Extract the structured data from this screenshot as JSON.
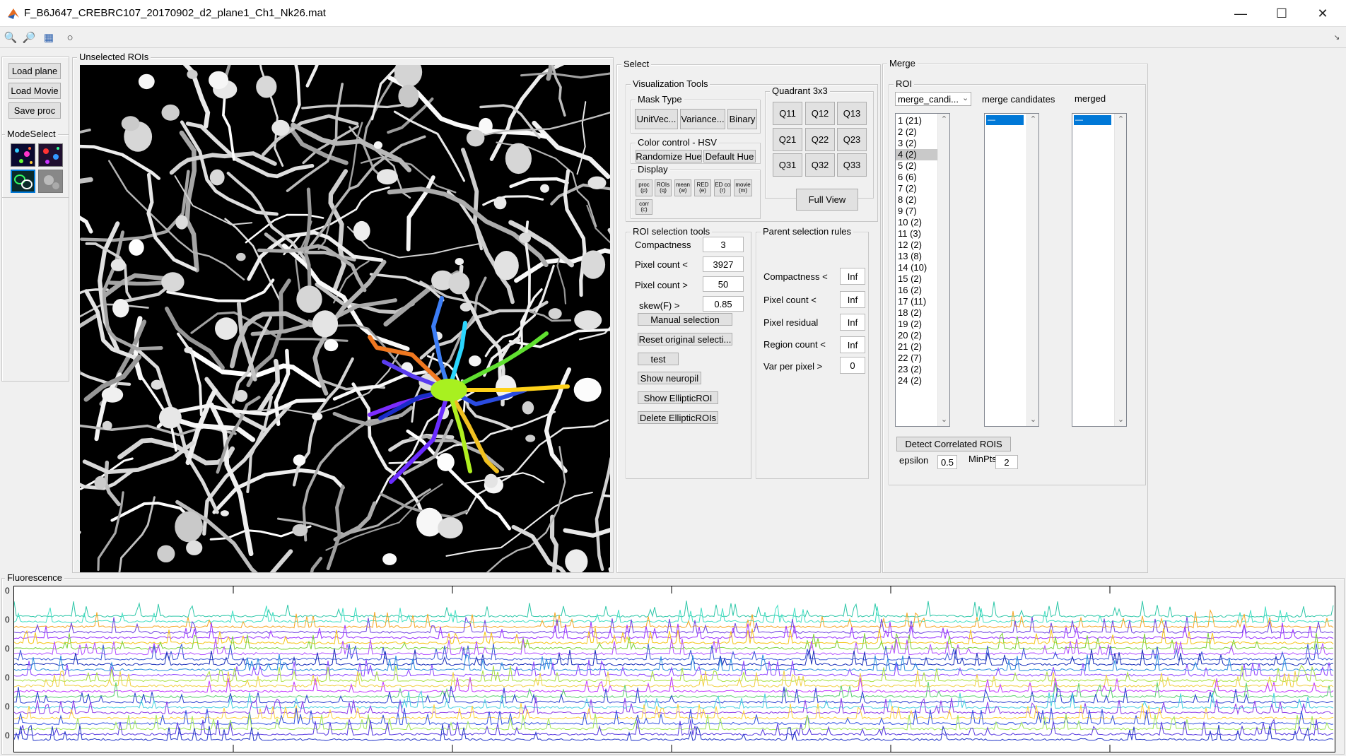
{
  "window": {
    "title": "F_B6J647_CREBRC107_20170902_d2_plane1_Ch1_Nk26.mat"
  },
  "toolbar": {
    "icons": [
      "zoom-in-icon",
      "zoom-out-icon",
      "pan-icon",
      "circle-icon"
    ]
  },
  "left": {
    "load_plane": "Load plane",
    "load_movie": "Load Movie",
    "save_proc": "Save proc",
    "modeselect_title": "ModeSelect"
  },
  "image_panel": {
    "title": "Unselected ROIs"
  },
  "select": {
    "title": "Select",
    "vis_tools": "Visualization Tools",
    "mask_type": "Mask Type",
    "mask_buttons": [
      "UnitVec...",
      "Variance...",
      "Binary"
    ],
    "color_control": "Color control - HSV",
    "randomize_hue": "Randomize Hue",
    "default_hue": "Default Hue",
    "display": "Display",
    "display_buttons": [
      {
        "l1": "proc",
        "l2": "(p)"
      },
      {
        "l1": "ROIs",
        "l2": "(q)"
      },
      {
        "l1": "mean",
        "l2": "(w)"
      },
      {
        "l1": "RED",
        "l2": "(e)"
      },
      {
        "l1": "RED corr",
        "l2": "(r)"
      },
      {
        "l1": "movie",
        "l2": "(m)"
      }
    ],
    "corr_button": {
      "l1": "corr",
      "l2": "(c)"
    },
    "quadrant_title": "Quadrant 3x3",
    "quadrants": [
      "Q11",
      "Q12",
      "Q13",
      "Q21",
      "Q22",
      "Q23",
      "Q31",
      "Q32",
      "Q33"
    ],
    "full_view": "Full View",
    "roi_tools_title": "ROI selection tools",
    "roi_rows": [
      {
        "label": "Compactness",
        "value": "3"
      },
      {
        "label": "Pixel count <",
        "value": "3927"
      },
      {
        "label": "Pixel count >",
        "value": "50"
      },
      {
        "label": "skew(F) >",
        "value": "0.85"
      }
    ],
    "manual_selection": "Manual selection",
    "reset_original": "Reset original selecti...",
    "test": "test",
    "show_neuropil": "Show neuropil",
    "show_elliptic": "Show EllipticROI",
    "delete_elliptic": "Delete EllipticROIs",
    "parent_title": "Parent selection rules",
    "parent_rows": [
      {
        "label": "Compactness <",
        "value": "Inf"
      },
      {
        "label": "Pixel count <",
        "value": "Inf"
      },
      {
        "label": "Pixel residual",
        "value": "Inf"
      },
      {
        "label": "Region count <",
        "value": "Inf"
      },
      {
        "label": "Var per pixel >",
        "value": "0"
      }
    ]
  },
  "merge": {
    "title": "Merge",
    "roi_title": "ROI",
    "dropdown_value": "merge_candi...",
    "merge_candidates_label": "merge candidates",
    "merged_label": "merged",
    "roi_list": [
      "1 (21)",
      "2 (2)",
      "3 (2)",
      "4 (2)",
      "5 (2)",
      "6 (6)",
      "7 (2)",
      "8 (2)",
      "9 (7)",
      "10 (2)",
      "11 (3)",
      "12 (2)",
      "13 (8)",
      "14 (10)",
      "15 (2)",
      "16 (2)",
      "17 (11)",
      "18 (2)",
      "19 (2)",
      "20 (2)",
      "21 (2)",
      "22 (7)",
      "23 (2)",
      "24 (2)"
    ],
    "selected_index": 3,
    "detect_button": "Detect Correlated ROIS",
    "epsilon_label": "epsilon",
    "epsilon_value": "0.5",
    "minpts_label": "MinPts",
    "minpts_value": "2"
  },
  "fluorescence": {
    "title": "Fluorescence",
    "ytick_labels": [
      "0",
      "0",
      "0",
      "0",
      "0",
      "0"
    ],
    "trace_colors": [
      "#2dc7a8",
      "#41e0c4",
      "#f5a623",
      "#6e3fe0",
      "#9b30ff",
      "#f5c518",
      "#7ad33a",
      "#b24dff",
      "#3a5ad8",
      "#1a2fb8",
      "#2a8fe0",
      "#8f44ff",
      "#a8e040",
      "#f0d040",
      "#c23aff",
      "#5ad070",
      "#2a40d0",
      "#46d0e0",
      "#8c3ae8",
      "#ffd23a",
      "#3050e0",
      "#a0e85a",
      "#5a3ae0",
      "#2538c8"
    ]
  },
  "colors": {
    "accent": "#0078d7"
  }
}
